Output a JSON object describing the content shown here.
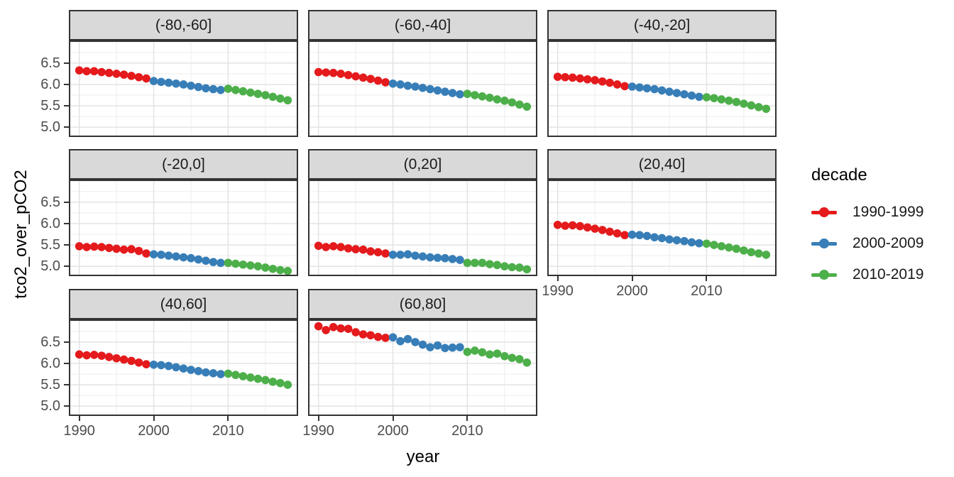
{
  "chart_data": {
    "type": "scatter",
    "xlabel": "year",
    "ylabel": "tco2_over_pCO2",
    "xlim": [
      1988.6,
      2019.4
    ],
    "ylim": [
      4.77,
      7.03
    ],
    "x_ticks": [
      {
        "v": 1990,
        "label": "1990"
      },
      {
        "v": 2000,
        "label": "2000"
      },
      {
        "v": 2010,
        "label": "2010"
      }
    ],
    "y_ticks": [
      {
        "v": 6.5,
        "label": "6.5"
      },
      {
        "v": 6.0,
        "label": "6.0"
      },
      {
        "v": 5.5,
        "label": "5.5"
      },
      {
        "v": 5.0,
        "label": "5.0"
      }
    ],
    "grid": {
      "major_x": [
        1990,
        2000,
        2010
      ],
      "minor_x": [
        1995,
        2005,
        2015
      ],
      "major_y": [
        5.0,
        5.5,
        6.0,
        6.5,
        7.0
      ],
      "minor_y": [
        4.75,
        5.25,
        5.75,
        6.25,
        6.75
      ],
      "major_color": "#e3e3e3",
      "minor_color": "#f1f1f1"
    },
    "years": [
      1990,
      1991,
      1992,
      1993,
      1994,
      1995,
      1996,
      1997,
      1998,
      1999,
      2000,
      2001,
      2002,
      2003,
      2004,
      2005,
      2006,
      2007,
      2008,
      2009,
      2010,
      2011,
      2012,
      2013,
      2014,
      2015,
      2016,
      2017,
      2018
    ],
    "legend": {
      "title": "decade",
      "position": "right",
      "entries": [
        {
          "label": "1990-1999",
          "color": "#E41A1C",
          "year_from": 1990,
          "year_to": 1999
        },
        {
          "label": "2000-2009",
          "color": "#377EB8",
          "year_from": 2000,
          "year_to": 2009
        },
        {
          "label": "2010-2019",
          "color": "#4DAF4A",
          "year_from": 2010,
          "year_to": 2019
        }
      ]
    },
    "facets": [
      {
        "label": "(-80,-60]",
        "values": [
          6.33,
          6.31,
          6.31,
          6.29,
          6.27,
          6.25,
          6.23,
          6.2,
          6.17,
          6.14,
          6.08,
          6.06,
          6.04,
          6.02,
          6.0,
          5.97,
          5.94,
          5.91,
          5.89,
          5.87,
          5.9,
          5.87,
          5.84,
          5.81,
          5.78,
          5.75,
          5.71,
          5.67,
          5.63
        ]
      },
      {
        "label": "(-60,-40]",
        "values": [
          6.29,
          6.28,
          6.27,
          6.25,
          6.22,
          6.19,
          6.16,
          6.13,
          6.09,
          6.05,
          6.02,
          6.0,
          5.97,
          5.95,
          5.92,
          5.89,
          5.86,
          5.83,
          5.8,
          5.77,
          5.78,
          5.75,
          5.72,
          5.69,
          5.65,
          5.62,
          5.58,
          5.53,
          5.48
        ]
      },
      {
        "label": "(-40,-20]",
        "values": [
          6.18,
          6.17,
          6.16,
          6.14,
          6.12,
          6.1,
          6.07,
          6.04,
          6.0,
          5.96,
          5.95,
          5.93,
          5.91,
          5.89,
          5.86,
          5.83,
          5.8,
          5.77,
          5.74,
          5.71,
          5.7,
          5.68,
          5.65,
          5.62,
          5.59,
          5.55,
          5.51,
          5.47,
          5.43
        ]
      },
      {
        "label": "(-20,0]",
        "values": [
          5.47,
          5.45,
          5.46,
          5.45,
          5.43,
          5.41,
          5.39,
          5.4,
          5.36,
          5.3,
          5.28,
          5.27,
          5.25,
          5.23,
          5.21,
          5.19,
          5.16,
          5.13,
          5.1,
          5.08,
          5.08,
          5.06,
          5.04,
          5.02,
          5.0,
          4.97,
          4.94,
          4.91,
          4.89
        ]
      },
      {
        "label": "(0,20]",
        "values": [
          5.48,
          5.45,
          5.47,
          5.45,
          5.42,
          5.4,
          5.39,
          5.35,
          5.33,
          5.3,
          5.27,
          5.27,
          5.28,
          5.25,
          5.23,
          5.21,
          5.2,
          5.19,
          5.17,
          5.15,
          5.08,
          5.08,
          5.08,
          5.05,
          5.03,
          5.0,
          4.98,
          4.97,
          4.93
        ]
      },
      {
        "label": "(20,40]",
        "values": [
          5.97,
          5.95,
          5.96,
          5.94,
          5.91,
          5.88,
          5.85,
          5.81,
          5.77,
          5.73,
          5.74,
          5.73,
          5.71,
          5.68,
          5.66,
          5.63,
          5.61,
          5.59,
          5.56,
          5.54,
          5.53,
          5.5,
          5.47,
          5.44,
          5.41,
          5.37,
          5.33,
          5.3,
          5.27
        ]
      },
      {
        "label": "(40,60]",
        "values": [
          6.21,
          6.19,
          6.2,
          6.18,
          6.15,
          6.12,
          6.09,
          6.06,
          6.02,
          5.98,
          5.97,
          5.96,
          5.94,
          5.91,
          5.88,
          5.85,
          5.82,
          5.79,
          5.77,
          5.75,
          5.76,
          5.73,
          5.7,
          5.67,
          5.64,
          5.61,
          5.57,
          5.54,
          5.5
        ]
      },
      {
        "label": "(60,80]",
        "values": [
          6.87,
          6.78,
          6.85,
          6.82,
          6.81,
          6.73,
          6.68,
          6.66,
          6.62,
          6.6,
          6.61,
          6.52,
          6.57,
          6.5,
          6.44,
          6.38,
          6.42,
          6.36,
          6.37,
          6.38,
          6.27,
          6.3,
          6.26,
          6.21,
          6.23,
          6.17,
          6.13,
          6.1,
          6.02
        ]
      }
    ],
    "style": {
      "point_radius": 5.8,
      "panel_border_color": "#333333",
      "strip_bg": "#d9d9d9",
      "tick_label_color": "#4d4d4d"
    }
  }
}
